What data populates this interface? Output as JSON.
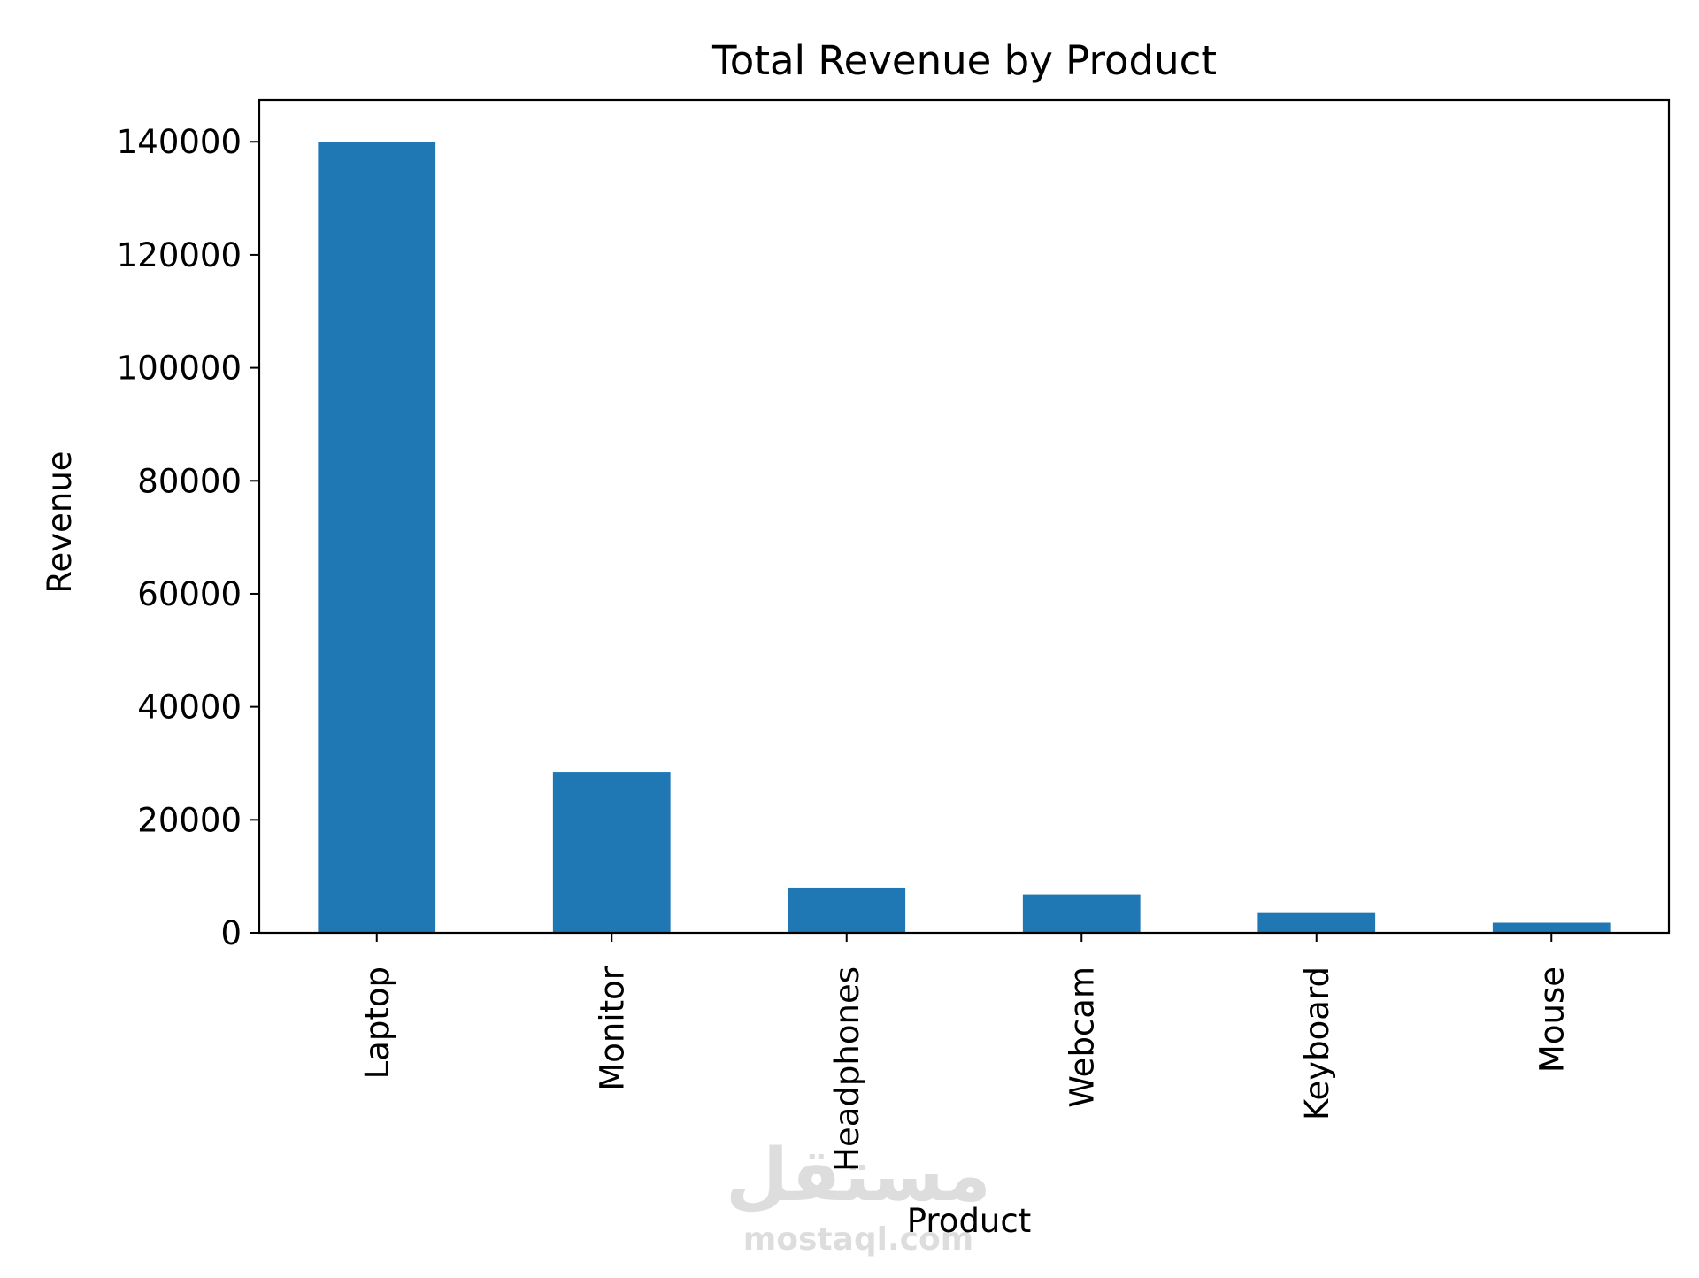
{
  "chart_data": {
    "type": "bar",
    "title": "Total Revenue by Product",
    "xlabel": "Product",
    "ylabel": "Revenue",
    "categories": [
      "Laptop",
      "Monitor",
      "Headphones",
      "Webcam",
      "Keyboard",
      "Mouse"
    ],
    "values": [
      140000,
      28500,
      8000,
      6800,
      3500,
      1800
    ],
    "ylim": [
      0,
      147400
    ],
    "yticks": [
      0,
      20000,
      40000,
      60000,
      80000,
      100000,
      120000,
      140000
    ],
    "ytick_labels": [
      "0",
      "20000",
      "40000",
      "60000",
      "80000",
      "100000",
      "120000",
      "140000"
    ],
    "bar_color": "#1f77b4",
    "grid": false,
    "legend": "none"
  },
  "watermark": {
    "text": "مستقل",
    "subtext": "mostaql.com"
  }
}
